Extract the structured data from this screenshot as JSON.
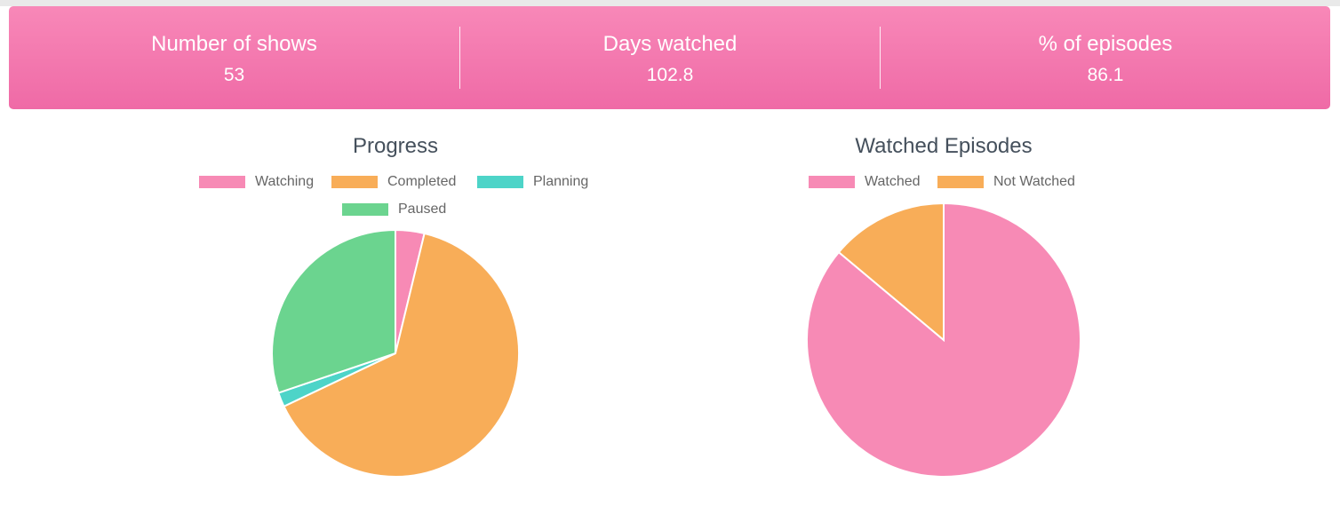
{
  "stats": [
    {
      "label": "Number of shows",
      "value": "53"
    },
    {
      "label": "Days watched",
      "value": "102.8"
    },
    {
      "label": "% of episodes",
      "value": "86.1"
    }
  ],
  "colors": {
    "banner_top": "#f888b8",
    "banner_bottom": "#ef6aa6",
    "pink": "#f78ab5",
    "orange": "#f8ad58",
    "teal": "#4dd4c8",
    "green": "#6bd48f"
  },
  "chart_data": [
    {
      "type": "pie",
      "title": "Progress",
      "legend_position": "top",
      "categories": [
        "Watching",
        "Completed",
        "Planning",
        "Paused"
      ],
      "values": [
        2,
        34,
        1,
        16
      ],
      "colors": [
        "#f78ab5",
        "#f8ad58",
        "#4dd4c8",
        "#6bd48f"
      ]
    },
    {
      "type": "pie",
      "title": "Watched Episodes",
      "legend_position": "top",
      "categories": [
        "Watched",
        "Not Watched"
      ],
      "values": [
        86.1,
        13.9
      ],
      "colors": [
        "#f78ab5",
        "#f8ad58"
      ]
    }
  ]
}
